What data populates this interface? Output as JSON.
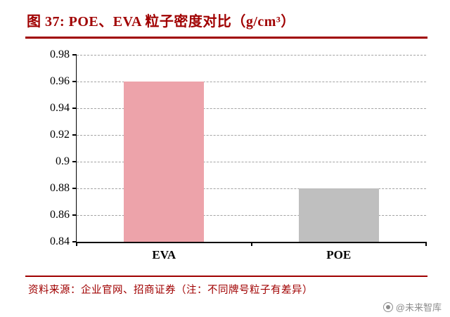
{
  "figure": {
    "title": "图 37:  POE、EVA 粒子密度对比（g/cm³）"
  },
  "chart_data": {
    "type": "bar",
    "title": "POE、EVA 粒子密度对比（g/cm³）",
    "categories": [
      "EVA",
      "POE"
    ],
    "values": [
      0.96,
      0.88
    ],
    "bar_colors": [
      "#EDA3AA",
      "#BFBFBF"
    ],
    "xlabel": "",
    "ylabel": "",
    "ylim": [
      0.84,
      0.98
    ],
    "yticks": [
      0.84,
      0.86,
      0.88,
      0.9,
      0.92,
      0.94,
      0.96,
      0.98
    ],
    "ytick_labels": [
      "0.84",
      "0.86",
      "0.88",
      "0.9",
      "0.92",
      "0.94",
      "0.96",
      "0.98"
    ],
    "grid": "dashed-horizontal",
    "legend": "none"
  },
  "footer": {
    "source": "资料来源：企业官网、招商证券（注：不同牌号粒子有差异）",
    "watermark": "@未来智库"
  },
  "colors": {
    "accent_red": "#A00000",
    "bar_eva": "#EDA3AA",
    "bar_poe": "#BFBFBF",
    "gridline": "#A3A3A3",
    "watermark_gray": "#8C8C8C"
  }
}
